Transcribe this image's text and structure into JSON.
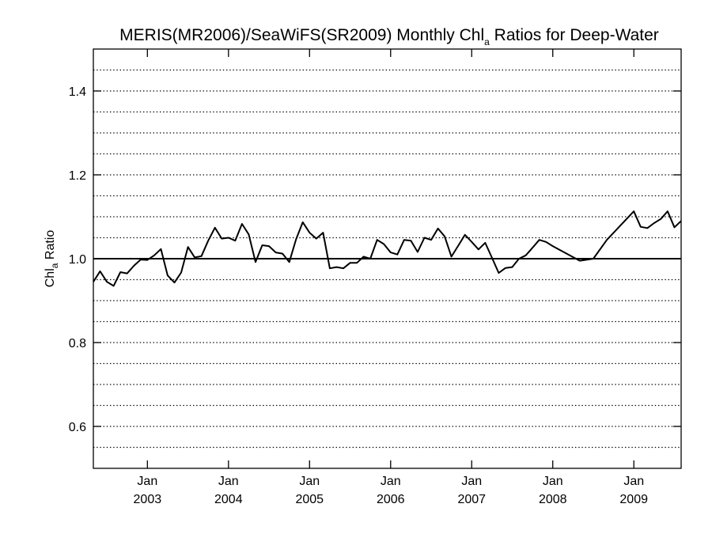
{
  "chart_data": {
    "type": "line",
    "title": {
      "prefix": "MERIS(MR2006)/SeaWiFS(SR2009) Monthly Chl",
      "subscript": "a",
      "suffix": " Ratios for Deep-Water"
    },
    "ylabel": {
      "prefix": "Chl",
      "subscript": "a",
      "suffix": " Ratio"
    },
    "xlim": [
      "2002-05",
      "2009-08"
    ],
    "ylim": [
      0.5,
      1.5
    ],
    "y_ticks": [
      {
        "value": 0.6,
        "label": "0.6"
      },
      {
        "value": 0.8,
        "label": "0.8"
      },
      {
        "value": 1.0,
        "label": "1.0"
      },
      {
        "value": 1.2,
        "label": "1.2"
      },
      {
        "value": 1.4,
        "label": "1.4"
      }
    ],
    "x_ticks": [
      {
        "date": "2003-01",
        "month": "Jan",
        "year": "2003"
      },
      {
        "date": "2004-01",
        "month": "Jan",
        "year": "2004"
      },
      {
        "date": "2005-01",
        "month": "Jan",
        "year": "2005"
      },
      {
        "date": "2006-01",
        "month": "Jan",
        "year": "2006"
      },
      {
        "date": "2007-01",
        "month": "Jan",
        "year": "2007"
      },
      {
        "date": "2008-01",
        "month": "Jan",
        "year": "2008"
      },
      {
        "date": "2009-01",
        "month": "Jan",
        "year": "2009"
      }
    ],
    "grid": {
      "horizontal_dotted_every": 0.05
    },
    "reference_line": {
      "y": 1.0
    },
    "series": [
      {
        "x": [
          "2002-05",
          "2002-06",
          "2002-07",
          "2002-08",
          "2002-09",
          "2002-10",
          "2002-11",
          "2002-12",
          "2003-01",
          "2003-02",
          "2003-03",
          "2003-04",
          "2003-05",
          "2003-06",
          "2003-07",
          "2003-08",
          "2003-09",
          "2003-10",
          "2003-11",
          "2003-12",
          "2004-01",
          "2004-02",
          "2004-03",
          "2004-04",
          "2004-05",
          "2004-06",
          "2004-07",
          "2004-08",
          "2004-09",
          "2004-10",
          "2004-11",
          "2004-12",
          "2005-01",
          "2005-02",
          "2005-03",
          "2005-04",
          "2005-05",
          "2005-06",
          "2005-07",
          "2005-08",
          "2005-09",
          "2005-10",
          "2005-11",
          "2005-12",
          "2006-01",
          "2006-02",
          "2006-03",
          "2006-04",
          "2006-05",
          "2006-06",
          "2006-07",
          "2006-08",
          "2006-09",
          "2006-10",
          "2006-11",
          "2006-12",
          "2007-01",
          "2007-02",
          "2007-03",
          "2007-04",
          "2007-05",
          "2007-06",
          "2007-07",
          "2007-08",
          "2007-09",
          "2007-10",
          "2007-11",
          "2007-12",
          "2008-01",
          "2008-05",
          "2008-07",
          "2008-09",
          "2009-01",
          "2009-02",
          "2009-03",
          "2009-04",
          "2009-05",
          "2009-06",
          "2009-07",
          "2009-08"
        ],
        "y": [
          0.945,
          0.97,
          0.945,
          0.935,
          0.968,
          0.965,
          0.983,
          0.998,
          0.997,
          1.008,
          1.023,
          0.96,
          0.943,
          0.967,
          1.028,
          1.003,
          1.006,
          1.043,
          1.074,
          1.048,
          1.05,
          1.043,
          1.083,
          1.058,
          0.992,
          1.032,
          1.03,
          1.015,
          1.012,
          0.992,
          1.046,
          1.087,
          1.062,
          1.048,
          1.062,
          0.977,
          0.98,
          0.977,
          0.99,
          0.99,
          1.005,
          1.0,
          1.045,
          1.035,
          1.015,
          1.01,
          1.045,
          1.043,
          1.016,
          1.05,
          1.045,
          1.072,
          1.053,
          1.005,
          1.031,
          1.057,
          1.04,
          1.022,
          1.038,
          1.002,
          0.966,
          0.978,
          0.98,
          1.0,
          1.008,
          1.026,
          1.045,
          1.04,
          1.03,
          0.995,
          1.0,
          1.045,
          1.113,
          1.076,
          1.073,
          1.085,
          1.095,
          1.113,
          1.075,
          1.09
        ]
      }
    ]
  }
}
